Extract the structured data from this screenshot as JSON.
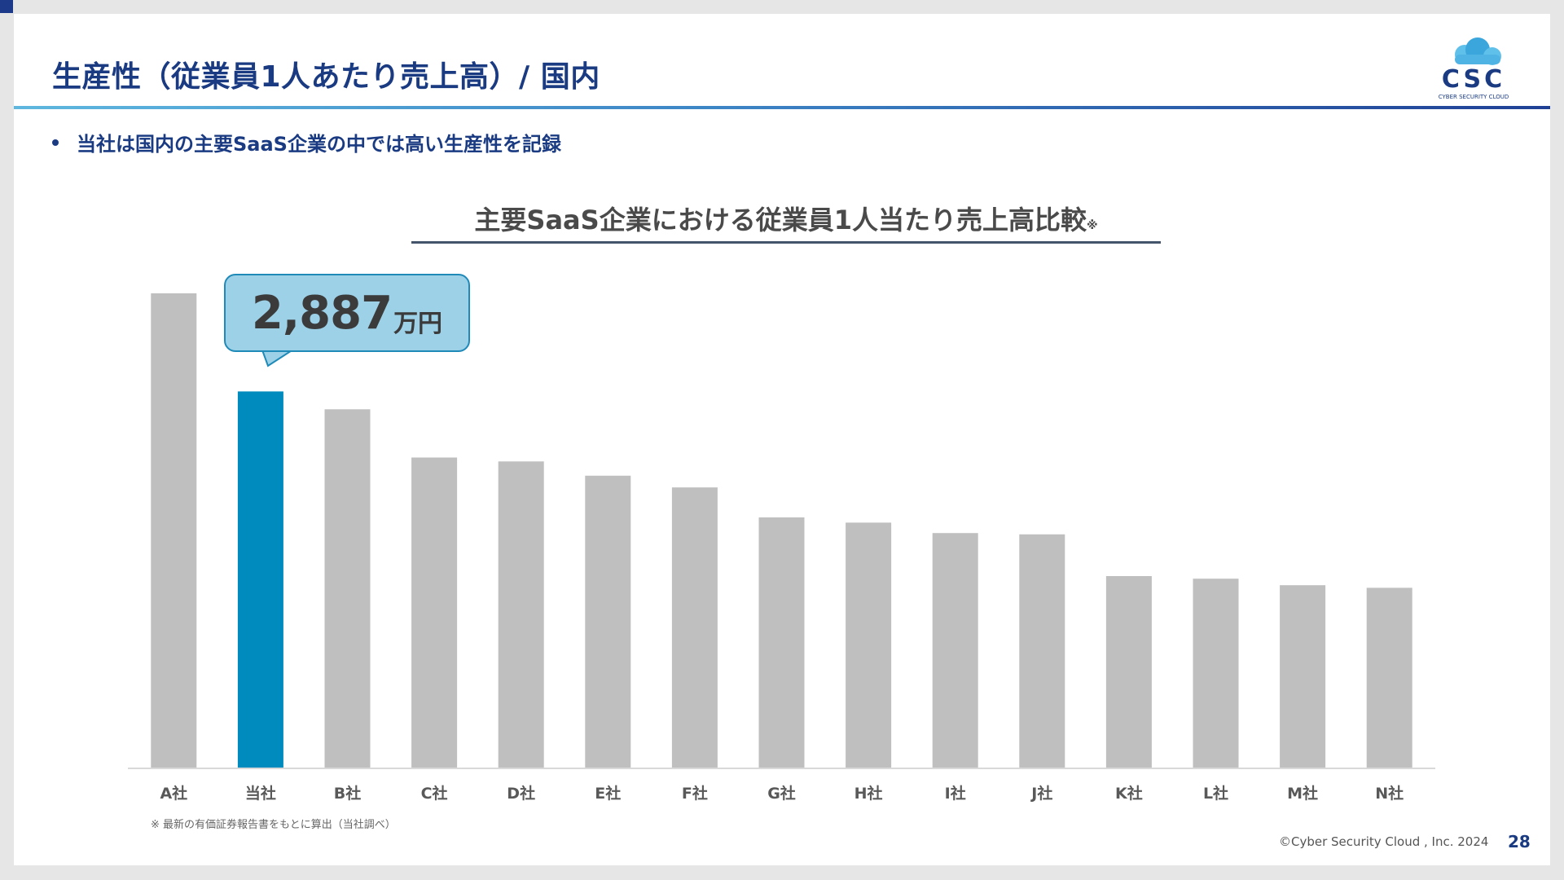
{
  "slide": {
    "title": "生産性（従業員1人あたり売上高）/ 国内",
    "bullet": "当社は国内の主要SaaS企業の中では高い生産性を記録",
    "footnote": "※ 最新の有価証券報告書をもとに算出（当社調べ）",
    "copyright": "©Cyber Security Cloud , Inc. 2024",
    "page_number": "28",
    "logo": {
      "text": "CSC",
      "subtext": "CYBER SECURITY CLOUD",
      "icon": "cloud-icon"
    }
  },
  "colors": {
    "title": "#1a3b82",
    "highlight_bar": "#008bbf",
    "bar": "#bfbfbf",
    "callout_fill": "#9dd1e8",
    "callout_border": "#1f8ab8"
  },
  "chart_data": {
    "type": "bar",
    "title": "主要SaaS企業における従業員1人当たり売上高比較",
    "title_mark": "※",
    "categories": [
      "A社",
      "当社",
      "B社",
      "C社",
      "D社",
      "E社",
      "F社",
      "G社",
      "H社",
      "I社",
      "J社",
      "K社",
      "L社",
      "M社",
      "N社"
    ],
    "values": [
      3640,
      2887,
      2750,
      2380,
      2350,
      2240,
      2150,
      1920,
      1880,
      1800,
      1790,
      1470,
      1450,
      1400,
      1380
    ],
    "highlight_index": 1,
    "unit": "万円",
    "ylim": [
      0,
      3640
    ],
    "grid": false,
    "legend": "none",
    "callout": {
      "value": "2,887",
      "unit": "万円"
    }
  }
}
